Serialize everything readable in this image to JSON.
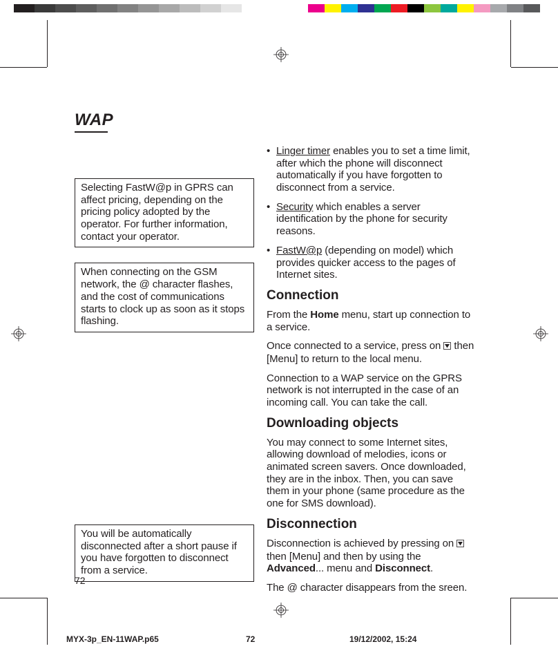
{
  "registration": {
    "colorbar_left": [
      "#231f20",
      "#3a3a3a",
      "#4d4d4d",
      "#5e5e5e",
      "#707070",
      "#828282",
      "#959595",
      "#a8a8a8",
      "#bcbcbc",
      "#d1d1d1",
      "#e6e6e6",
      "#ffffff"
    ],
    "colorbar_right": [
      "#ffffff",
      "#ec008c",
      "#fff200",
      "#00aeef",
      "#2e3192",
      "#00a651",
      "#ed1c24",
      "#000000",
      "#8dc63f",
      "#00a99d",
      "#fff200",
      "#f49ac1",
      "#a7a9ac",
      "#808285",
      "#58595b"
    ]
  },
  "title": "WAP",
  "left_notes": {
    "note1": "Selecting FastW@p in GPRS can affect pricing, depending on the pricing policy adopted by the operator. For further information, contact your operator.",
    "note2": "When connecting on the GSM network, the @ character flashes, and the cost of communications starts to clock up as soon as it stops flashing.",
    "note3": "You will be automatically disconnected after a short pause if you have forgotten to disconnect from a service."
  },
  "bullets": {
    "b1_u": "Linger timer",
    "b1_rest": " enables you to set a time limit, after which the phone will disconnect automatically if you have forgotten to disconnect from a service.",
    "b2_u": "Security",
    "b2_rest": " which enables a server identification by the phone for security reasons.",
    "b3_u": "FastW@p",
    "b3_rest": " (depending on model) which provides quicker access to the pages of Internet sites."
  },
  "sections": {
    "connection_h": "Connection",
    "connection_p1a": "From the ",
    "connection_p1b": "Home",
    "connection_p1c": " menu, start up connection to a service.",
    "connection_p2a": "Once connected to a service, press on ",
    "connection_p2b": " then [Menu] to return to the local menu.",
    "connection_p3": "Connection to a WAP service on the GPRS network is not interrupted in the case of an incoming call. You can take the call.",
    "downloading_h": "Downloading objects",
    "downloading_p": "You may connect to some Internet sites, allowing download of melodies, icons or animated screen savers. Once downloaded, they are in the inbox. Then, you can save them in your phone (same procedure as the one for SMS download).",
    "disconnection_h": "Disconnection",
    "disconnection_p1a": "Disconnection is achieved by pressing on ",
    "disconnection_p1b": " then [Menu] and then by using the ",
    "disconnection_p1c": "Advanced",
    "disconnection_p1d": "... menu and ",
    "disconnection_p1e": "Disconnect",
    "disconnection_p1f": ".",
    "disconnection_p2": "The @ character disappears from the sreen."
  },
  "page_number": "72",
  "footer": {
    "file": "MYX-3p_EN-11WAP.p65",
    "page": "72",
    "date": "19/12/2002, 15:24"
  }
}
